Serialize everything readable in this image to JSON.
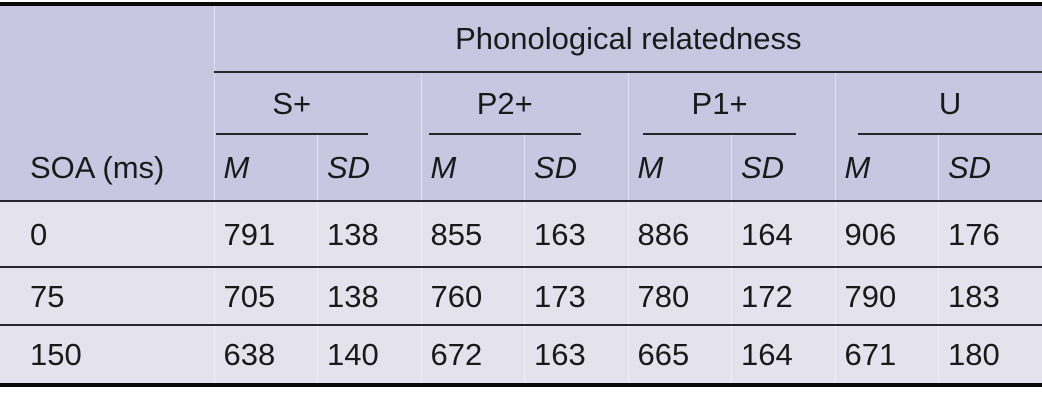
{
  "colors": {
    "header-bg": "#c8c6e1",
    "body-bg": "#e3e2ed",
    "line": "#26262e",
    "frame": "#0a0a0a",
    "text": "#1a1a1a"
  },
  "header": {
    "spanner": "Phonological relatedness",
    "row_axis": "SOA (ms)",
    "groups": [
      "S+",
      "P2+",
      "P1+",
      "U"
    ],
    "stat_labels": [
      "M",
      "SD",
      "M",
      "SD",
      "M",
      "SD",
      "M",
      "SD"
    ]
  },
  "rows": [
    {
      "soa": "0",
      "cells": [
        "791",
        "138",
        "855",
        "163",
        "886",
        "164",
        "906",
        "176"
      ]
    },
    {
      "soa": "75",
      "cells": [
        "705",
        "138",
        "760",
        "173",
        "780",
        "172",
        "790",
        "183"
      ]
    },
    {
      "soa": "150",
      "cells": [
        "638",
        "140",
        "672",
        "163",
        "665",
        "164",
        "671",
        "180"
      ]
    }
  ],
  "chart_data": {
    "type": "table",
    "title": "Phonological relatedness",
    "row_label": "SOA (ms)",
    "columns": [
      "S+ M",
      "S+ SD",
      "P2+ M",
      "P2+ SD",
      "P1+ M",
      "P1+ SD",
      "U M",
      "U SD"
    ],
    "rows": [
      {
        "soa": 0,
        "values": [
          791,
          138,
          855,
          163,
          886,
          164,
          906,
          176
        ]
      },
      {
        "soa": 75,
        "values": [
          705,
          138,
          760,
          173,
          780,
          172,
          790,
          183
        ]
      },
      {
        "soa": 150,
        "values": [
          638,
          140,
          672,
          163,
          665,
          164,
          671,
          180
        ]
      }
    ]
  }
}
